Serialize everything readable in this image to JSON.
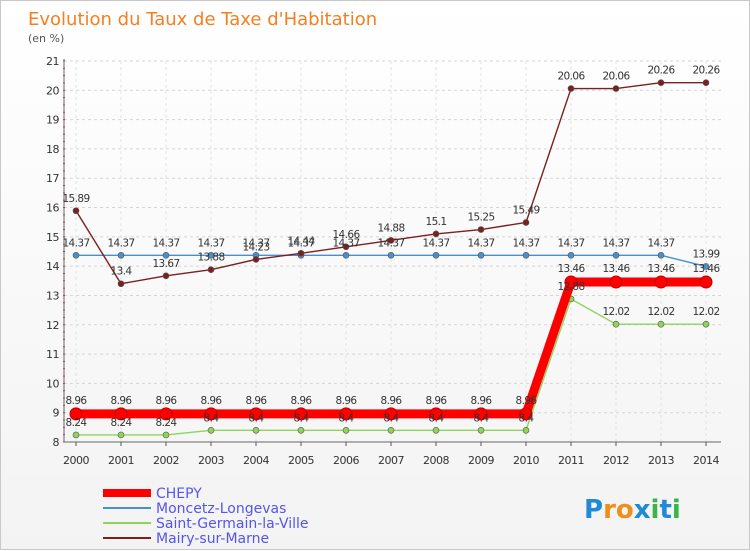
{
  "chart_data": {
    "type": "line",
    "title": "Evolution du Taux de Taxe d'Habitation",
    "subtitle": "(en %)",
    "x": [
      2000,
      2001,
      2002,
      2003,
      2004,
      2005,
      2006,
      2007,
      2008,
      2009,
      2010,
      2011,
      2012,
      2013,
      2014
    ],
    "ylim": [
      8,
      21
    ],
    "yticks": [
      8,
      9,
      10,
      11,
      12,
      13,
      14,
      15,
      16,
      17,
      18,
      19,
      20,
      21
    ],
    "grid": "horizontal dashed",
    "legend_position": "bottom-left",
    "series": [
      {
        "name": "CHEPY",
        "color": "#ff0000",
        "values": [
          8.96,
          8.96,
          8.96,
          8.96,
          8.96,
          8.96,
          8.96,
          8.96,
          8.96,
          8.96,
          8.96,
          13.46,
          13.46,
          13.46,
          13.46
        ],
        "labels": [
          "8.96",
          "8.96",
          "8.96",
          "8.96",
          "8.96",
          "8.96",
          "8.96",
          "8.96",
          "8.96",
          "8.96",
          "8.96",
          "13.46",
          "13.46",
          "13.46",
          "13.46"
        ]
      },
      {
        "name": "Moncetz-Longevas",
        "color": "#4a8fc8",
        "values": [
          14.37,
          14.37,
          14.37,
          14.37,
          14.37,
          14.37,
          14.37,
          14.37,
          14.37,
          14.37,
          14.37,
          14.37,
          14.37,
          14.37,
          13.99
        ],
        "labels": [
          "14.37",
          "14.37",
          "14.37",
          "14.37",
          "14.37",
          "14.37",
          "14.37",
          "14.37",
          "14.37",
          "14.37",
          "14.37",
          "14.37",
          "14.37",
          "14.37",
          "13.99"
        ]
      },
      {
        "name": "Saint-Germain-la-Ville",
        "color": "#8fd45a",
        "values": [
          8.24,
          8.24,
          8.24,
          8.4,
          8.4,
          8.4,
          8.4,
          8.4,
          8.4,
          8.4,
          8.4,
          12.88,
          12.02,
          12.02,
          12.02
        ],
        "labels": [
          "8.24",
          "8.24",
          "8.24",
          "8.4",
          "8.4",
          "8.4",
          "8.4",
          "8.4",
          "8.4",
          "8.4",
          "8.4",
          "12.88",
          "12.02",
          "12.02",
          "12.02"
        ]
      },
      {
        "name": "Mairy-sur-Marne",
        "color": "#7a2020",
        "values": [
          15.89,
          13.4,
          13.67,
          13.88,
          14.23,
          14.44,
          14.66,
          14.88,
          15.1,
          15.25,
          15.49,
          20.06,
          20.06,
          20.26,
          20.26
        ],
        "labels": [
          "15.89",
          "13.4",
          "13.67",
          "13.88",
          "14.23",
          "14.44",
          "14.66",
          "14.88",
          "15.1",
          "15.25",
          "15.49",
          "20.06",
          "20.06",
          "20.26",
          "20.26"
        ]
      }
    ]
  },
  "logo": {
    "text": "Proxiti",
    "letters": [
      {
        "ch": "P",
        "color": "#1f8ad6"
      },
      {
        "ch": "r",
        "color": "#f28c1b"
      },
      {
        "ch": "o",
        "color": "#f28c1b"
      },
      {
        "ch": "x",
        "color": "#1f8ad6"
      },
      {
        "ch": "i",
        "color": "#3ab54a"
      },
      {
        "ch": "t",
        "color": "#1f8ad6"
      },
      {
        "ch": "i",
        "color": "#3ab54a"
      }
    ]
  }
}
